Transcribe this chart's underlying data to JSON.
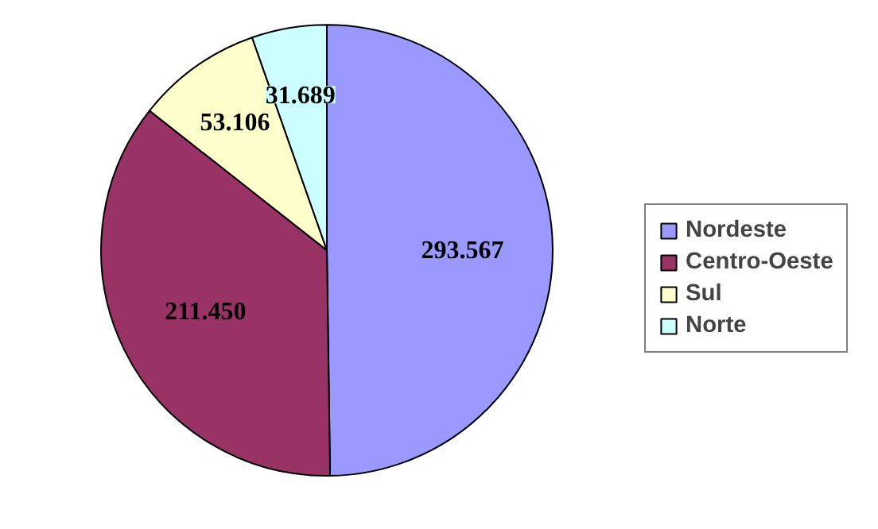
{
  "chart_data": {
    "type": "pie",
    "categories": [
      "Nordeste",
      "Centro-Oeste",
      "Sul",
      "Norte"
    ],
    "values": [
      293567,
      211450,
      53106,
      31689
    ],
    "value_labels": [
      "293.567",
      "211.450",
      "53.106",
      "31.689"
    ],
    "colors": [
      "#9999ff",
      "#993366",
      "#ffffcc",
      "#ccffff"
    ],
    "legend": "right"
  }
}
